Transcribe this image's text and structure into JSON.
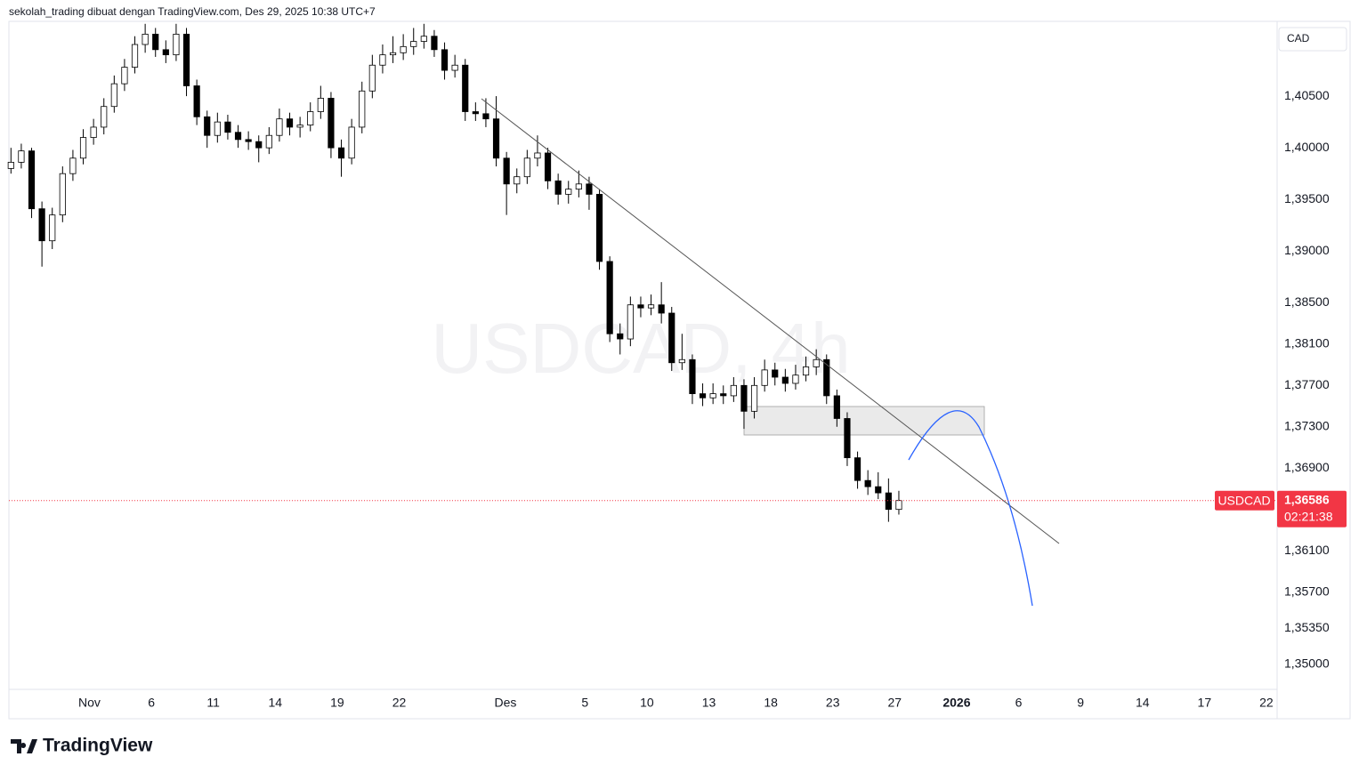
{
  "header": {
    "text": "sekolah_trading dibuat dengan TradingView.com, Des 29, 2025 10:38 UTC+7"
  },
  "currency": "CAD",
  "logo": "TradingView",
  "chart_data": {
    "type": "candlestick",
    "watermark": "USDCAD, 4h",
    "symbol": "USDCAD",
    "last_price": {
      "value": 1.36586,
      "label": "1,36586"
    },
    "countdown": "02:21:38",
    "up_color": "#ffffff",
    "down_color": "#000000",
    "wick_color": "#000000",
    "last_color": "#f23645",
    "xlim": [
      0,
      61.42
    ],
    "ylim": [
      1.34474,
      1.41224
    ],
    "xticks": [
      {
        "value": 3.9,
        "label": "Nov"
      },
      {
        "value": 6.9,
        "label": "6"
      },
      {
        "value": 9.9,
        "label": "11"
      },
      {
        "value": 12.9,
        "label": "14"
      },
      {
        "value": 15.9,
        "label": "19"
      },
      {
        "value": 18.9,
        "label": "22"
      },
      {
        "value": 24.05,
        "label": "Des"
      },
      {
        "value": 27.9,
        "label": "5"
      },
      {
        "value": 30.9,
        "label": "10"
      },
      {
        "value": 33.9,
        "label": "13"
      },
      {
        "value": 36.9,
        "label": "18"
      },
      {
        "value": 39.9,
        "label": "23"
      },
      {
        "value": 42.9,
        "label": "27"
      },
      {
        "value": 45.9,
        "label": "2026"
      },
      {
        "value": 48.9,
        "label": "6"
      },
      {
        "value": 51.9,
        "label": "9"
      },
      {
        "value": 54.9,
        "label": "14"
      },
      {
        "value": 57.9,
        "label": "17"
      },
      {
        "value": 60.9,
        "label": "22"
      }
    ],
    "yticks": [
      {
        "value": 1.405,
        "label": "1,40500"
      },
      {
        "value": 1.4,
        "label": "1,40000"
      },
      {
        "value": 1.395,
        "label": "1,39500"
      },
      {
        "value": 1.39,
        "label": "1,39000"
      },
      {
        "value": 1.385,
        "label": "1,38500"
      },
      {
        "value": 1.381,
        "label": "1,38100"
      },
      {
        "value": 1.377,
        "label": "1,37700"
      },
      {
        "value": 1.373,
        "label": "1,37300"
      },
      {
        "value": 1.369,
        "label": "1,36900"
      },
      {
        "value": 1.361,
        "label": "1,36100"
      },
      {
        "value": 1.357,
        "label": "1,35700"
      },
      {
        "value": 1.3535,
        "label": "1,35350"
      },
      {
        "value": 1.35,
        "label": "1,35000"
      }
    ],
    "x": [
      0.1,
      0.6,
      1.1,
      1.6,
      2.1,
      2.6,
      3.1,
      3.6,
      4.1,
      4.6,
      5.1,
      5.6,
      6.1,
      6.6,
      7.1,
      7.6,
      8.1,
      8.6,
      9.1,
      9.6,
      10.1,
      10.6,
      11.1,
      11.6,
      12.1,
      12.6,
      13.1,
      13.6,
      14.1,
      14.6,
      15.1,
      15.6,
      16.1,
      16.6,
      17.1,
      17.6,
      18.1,
      18.6,
      19.1,
      19.6,
      20.1,
      20.6,
      21.1,
      21.6,
      22.1,
      22.6,
      23.1,
      23.6,
      24.1,
      24.6,
      25.1,
      25.6,
      26.1,
      26.6,
      27.1,
      27.6,
      28.1,
      28.6,
      29.1,
      29.6,
      30.1,
      30.6,
      31.1,
      31.6,
      32.1,
      32.6,
      33.1,
      33.6,
      34.1,
      34.6,
      35.1,
      35.6,
      36.1,
      36.6,
      37.1,
      37.6,
      38.1,
      38.6,
      39.1,
      39.6,
      40.1,
      40.6,
      41.1,
      41.6,
      42.1,
      42.6,
      43.1
    ],
    "open": [
      1.398,
      1.3986,
      1.3997,
      1.3941,
      1.391,
      1.3935,
      1.3975,
      1.399,
      1.401,
      1.402,
      1.404,
      1.4062,
      1.4078,
      1.41,
      1.411,
      1.4095,
      1.409,
      1.411,
      1.406,
      1.403,
      1.4012,
      1.4025,
      1.4015,
      1.4008,
      1.4006,
      1.4,
      1.4012,
      1.4028,
      1.402,
      1.4022,
      1.4035,
      1.4048,
      1.4,
      1.399,
      1.402,
      1.4055,
      1.408,
      1.409,
      1.4092,
      1.4098,
      1.4103,
      1.4108,
      1.4095,
      1.4075,
      1.408,
      1.4035,
      1.4033,
      1.4028,
      1.399,
      1.3965,
      1.3972,
      1.399,
      1.3995,
      1.3968,
      1.3955,
      1.396,
      1.3965,
      1.3955,
      1.389,
      1.382,
      1.3815,
      1.3848,
      1.3845,
      1.3848,
      1.384,
      1.3792,
      1.3795,
      1.3762,
      1.3758,
      1.3762,
      1.376,
      1.377,
      1.3745,
      1.377,
      1.3785,
      1.3778,
      1.3772,
      1.378,
      1.3788,
      1.3795,
      1.376,
      1.3738,
      1.37,
      1.3678,
      1.3672,
      1.3666,
      1.365
    ],
    "high": [
      1.4,
      1.4004,
      1.4,
      1.3948,
      1.3942,
      1.3982,
      1.3998,
      1.4018,
      1.4028,
      1.4048,
      1.407,
      1.4086,
      1.4108,
      1.412,
      1.4116,
      1.4104,
      1.412,
      1.4116,
      1.4066,
      1.4036,
      1.4034,
      1.4032,
      1.4022,
      1.4016,
      1.4012,
      1.402,
      1.4038,
      1.4034,
      1.403,
      1.4044,
      1.406,
      1.4054,
      1.4008,
      1.4028,
      1.4064,
      1.409,
      1.41,
      1.4108,
      1.411,
      1.4116,
      1.412,
      1.4114,
      1.4102,
      1.409,
      1.4086,
      1.4044,
      1.4048,
      1.405,
      1.3996,
      1.398,
      1.3998,
      1.4012,
      1.4,
      1.3975,
      1.3968,
      1.3978,
      1.3972,
      1.396,
      1.3895,
      1.383,
      1.3856,
      1.3856,
      1.3858,
      1.387,
      1.3846,
      1.382,
      1.38,
      1.3772,
      1.3772,
      1.377,
      1.3778,
      1.3776,
      1.3778,
      1.3795,
      1.3792,
      1.3786,
      1.379,
      1.3798,
      1.3805,
      1.38,
      1.3766,
      1.3744,
      1.3706,
      1.3688,
      1.3686,
      1.368,
      1.3668
    ],
    "low": [
      1.3975,
      1.398,
      1.3932,
      1.3885,
      1.3902,
      1.3928,
      1.3968,
      1.3984,
      1.4003,
      1.4013,
      1.4034,
      1.4055,
      1.4072,
      1.4092,
      1.4088,
      1.4082,
      1.4084,
      1.405,
      1.4022,
      1.4,
      1.4005,
      1.4008,
      1.4,
      1.3998,
      1.3986,
      1.3994,
      1.4006,
      1.4012,
      1.401,
      1.4016,
      1.4028,
      1.399,
      1.3972,
      1.3984,
      1.4014,
      1.4048,
      1.4072,
      1.4082,
      1.4085,
      1.409,
      1.4096,
      1.4088,
      1.4066,
      1.4068,
      1.4026,
      1.4026,
      1.402,
      1.3982,
      1.3935,
      1.3956,
      1.3965,
      1.3982,
      1.396,
      1.3945,
      1.3946,
      1.3952,
      1.394,
      1.3882,
      1.3812,
      1.38,
      1.3808,
      1.3836,
      1.3838,
      1.383,
      1.3784,
      1.3785,
      1.3752,
      1.375,
      1.3752,
      1.3752,
      1.3754,
      1.3728,
      1.3738,
      1.3764,
      1.377,
      1.3764,
      1.3766,
      1.3774,
      1.378,
      1.3752,
      1.373,
      1.3692,
      1.367,
      1.3664,
      1.366,
      1.3638,
      1.3645
    ],
    "close": [
      1.3986,
      1.3997,
      1.3941,
      1.391,
      1.3935,
      1.3975,
      1.399,
      1.401,
      1.402,
      1.404,
      1.4062,
      1.4078,
      1.41,
      1.411,
      1.4095,
      1.409,
      1.411,
      1.406,
      1.403,
      1.4012,
      1.4025,
      1.4015,
      1.4008,
      1.4006,
      1.4,
      1.4012,
      1.4028,
      1.402,
      1.4022,
      1.4035,
      1.4048,
      1.4,
      1.399,
      1.402,
      1.4055,
      1.408,
      1.409,
      1.4092,
      1.4098,
      1.4103,
      1.4108,
      1.4095,
      1.4075,
      1.408,
      1.4035,
      1.4033,
      1.4028,
      1.399,
      1.3965,
      1.3972,
      1.399,
      1.3995,
      1.3968,
      1.3955,
      1.396,
      1.3965,
      1.3955,
      1.389,
      1.382,
      1.3815,
      1.3848,
      1.3845,
      1.3848,
      1.384,
      1.3792,
      1.3795,
      1.3762,
      1.3758,
      1.3762,
      1.376,
      1.377,
      1.3745,
      1.377,
      1.3785,
      1.3778,
      1.3772,
      1.378,
      1.3788,
      1.3795,
      1.376,
      1.3738,
      1.37,
      1.3678,
      1.3672,
      1.3666,
      1.365,
      1.36586
    ]
  }
}
